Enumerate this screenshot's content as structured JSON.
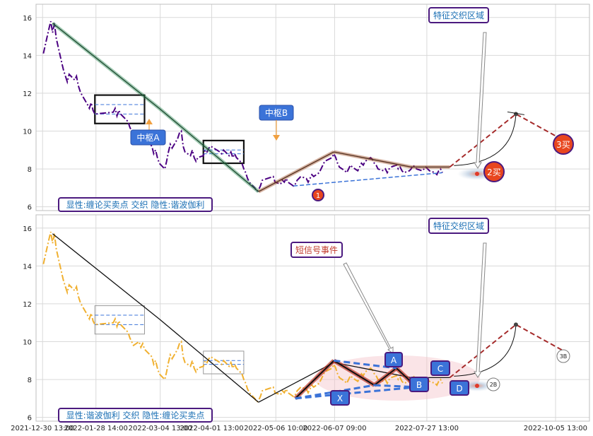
{
  "chart_data": [
    {
      "type": "line",
      "panel": "top",
      "title": "",
      "xlabel": "",
      "ylabel": "",
      "ylim": [
        5.8,
        16.7
      ],
      "yticks": [
        6,
        8,
        10,
        12,
        14,
        16
      ],
      "grid": true,
      "price_color": "#4b0082",
      "price": [
        [
          "2021-12-31",
          14.1
        ],
        [
          "2022-01-03",
          15.4
        ],
        [
          "2022-01-04",
          15.8
        ],
        [
          "2022-01-05",
          15.2
        ],
        [
          "2022-01-06",
          15.7
        ],
        [
          "2022-01-07",
          14.9
        ],
        [
          "2022-01-10",
          13.6
        ],
        [
          "2022-01-11",
          13.2
        ],
        [
          "2022-01-12",
          12.9
        ],
        [
          "2022-01-13",
          12.6
        ],
        [
          "2022-01-14",
          13.0
        ],
        [
          "2022-01-17",
          12.7
        ],
        [
          "2022-01-18",
          12.9
        ],
        [
          "2022-01-19",
          12.4
        ],
        [
          "2022-01-20",
          12.1
        ],
        [
          "2022-01-21",
          11.9
        ],
        [
          "2022-01-24",
          11.4
        ],
        [
          "2022-01-25",
          11.2
        ],
        [
          "2022-01-26",
          11.5
        ],
        [
          "2022-01-27",
          11.1
        ],
        [
          "2022-01-28",
          10.9
        ],
        [
          "2022-02-07",
          11.0
        ],
        [
          "2022-02-08",
          11.2
        ],
        [
          "2022-02-09",
          10.8
        ],
        [
          "2022-02-10",
          11.1
        ],
        [
          "2022-02-11",
          10.9
        ],
        [
          "2022-02-14",
          10.6
        ],
        [
          "2022-02-15",
          10.5
        ],
        [
          "2022-02-16",
          10.2
        ],
        [
          "2022-02-17",
          10.0
        ],
        [
          "2022-02-18",
          9.8
        ],
        [
          "2022-02-21",
          10.0
        ],
        [
          "2022-02-22",
          9.7
        ],
        [
          "2022-02-23",
          9.9
        ],
        [
          "2022-02-24",
          9.6
        ],
        [
          "2022-02-25",
          9.5
        ],
        [
          "2022-02-28",
          9.2
        ],
        [
          "2022-03-01",
          8.8
        ],
        [
          "2022-03-02",
          9.0
        ],
        [
          "2022-03-03",
          8.6
        ],
        [
          "2022-03-04",
          8.3
        ],
        [
          "2022-03-07",
          8.0
        ],
        [
          "2022-03-08",
          8.4
        ],
        [
          "2022-03-09",
          8.9
        ],
        [
          "2022-03-10",
          9.3
        ],
        [
          "2022-03-11",
          9.1
        ],
        [
          "2022-03-14",
          9.6
        ],
        [
          "2022-03-15",
          9.9
        ],
        [
          "2022-03-16",
          10.0
        ],
        [
          "2022-03-17",
          9.2
        ],
        [
          "2022-03-18",
          8.9
        ],
        [
          "2022-03-21",
          8.7
        ],
        [
          "2022-03-22",
          9.0
        ],
        [
          "2022-03-23",
          8.6
        ],
        [
          "2022-03-24",
          8.4
        ],
        [
          "2022-03-25",
          8.6
        ],
        [
          "2022-03-28",
          8.7
        ],
        [
          "2022-03-29",
          9.0
        ],
        [
          "2022-03-30",
          8.9
        ],
        [
          "2022-03-31",
          9.1
        ],
        [
          "2022-04-01",
          9.2
        ],
        [
          "2022-04-06",
          8.9
        ],
        [
          "2022-04-07",
          8.8
        ],
        [
          "2022-04-08",
          9.0
        ],
        [
          "2022-04-11",
          8.7
        ],
        [
          "2022-04-12",
          8.9
        ],
        [
          "2022-04-13",
          8.6
        ],
        [
          "2022-04-14",
          8.8
        ],
        [
          "2022-04-15",
          8.6
        ],
        [
          "2022-04-18",
          8.3
        ],
        [
          "2022-04-19",
          8.0
        ],
        [
          "2022-04-20",
          7.8
        ],
        [
          "2022-04-21",
          7.5
        ],
        [
          "2022-04-22",
          7.3
        ],
        [
          "2022-04-25",
          7.0
        ],
        [
          "2022-04-26",
          6.8
        ],
        [
          "2022-04-27",
          6.9
        ],
        [
          "2022-04-28",
          7.1
        ],
        [
          "2022-04-29",
          7.4
        ],
        [
          "2022-05-05",
          7.6
        ],
        [
          "2022-05-06",
          7.3
        ],
        [
          "2022-05-09",
          7.2
        ],
        [
          "2022-05-10",
          7.4
        ],
        [
          "2022-05-11",
          7.3
        ],
        [
          "2022-05-12",
          7.5
        ],
        [
          "2022-05-13",
          7.3
        ],
        [
          "2022-05-16",
          7.1
        ],
        [
          "2022-05-17",
          7.2
        ],
        [
          "2022-05-18",
          7.4
        ],
        [
          "2022-05-19",
          7.5
        ],
        [
          "2022-05-20",
          7.6
        ],
        [
          "2022-05-23",
          7.5
        ],
        [
          "2022-05-24",
          7.3
        ],
        [
          "2022-05-25",
          7.5
        ],
        [
          "2022-05-26",
          7.7
        ],
        [
          "2022-05-27",
          7.6
        ],
        [
          "2022-05-30",
          7.8
        ],
        [
          "2022-05-31",
          8.0
        ],
        [
          "2022-06-01",
          8.2
        ],
        [
          "2022-06-02",
          8.4
        ],
        [
          "2022-06-06",
          8.6
        ],
        [
          "2022-06-07",
          8.8
        ],
        [
          "2022-06-08",
          8.6
        ],
        [
          "2022-06-09",
          8.3
        ],
        [
          "2022-06-10",
          8.1
        ],
        [
          "2022-06-13",
          7.9
        ],
        [
          "2022-06-14",
          7.8
        ],
        [
          "2022-06-15",
          8.0
        ],
        [
          "2022-06-16",
          8.2
        ],
        [
          "2022-06-17",
          8.1
        ],
        [
          "2022-06-20",
          7.9
        ],
        [
          "2022-06-21",
          8.1
        ],
        [
          "2022-06-22",
          8.3
        ],
        [
          "2022-06-23",
          8.2
        ],
        [
          "2022-06-24",
          8.4
        ],
        [
          "2022-06-27",
          8.6
        ],
        [
          "2022-06-28",
          8.5
        ],
        [
          "2022-06-29",
          8.3
        ],
        [
          "2022-06-30",
          8.2
        ],
        [
          "2022-07-01",
          8.0
        ],
        [
          "2022-07-04",
          7.9
        ],
        [
          "2022-07-05",
          8.0
        ],
        [
          "2022-07-06",
          7.8
        ],
        [
          "2022-07-07",
          8.0
        ],
        [
          "2022-07-08",
          8.1
        ],
        [
          "2022-07-11",
          8.2
        ],
        [
          "2022-07-12",
          8.0
        ],
        [
          "2022-07-13",
          8.1
        ],
        [
          "2022-07-14",
          7.9
        ],
        [
          "2022-07-15",
          7.8
        ],
        [
          "2022-07-18",
          7.9
        ],
        [
          "2022-07-19",
          8.0
        ],
        [
          "2022-07-20",
          8.2
        ],
        [
          "2022-07-21",
          8.1
        ],
        [
          "2022-07-22",
          8.0
        ],
        [
          "2022-07-25",
          7.9
        ],
        [
          "2022-07-26",
          8.0
        ],
        [
          "2022-07-27",
          8.1
        ],
        [
          "2022-07-28",
          8.0
        ],
        [
          "2022-07-29",
          7.9
        ],
        [
          "2022-08-01",
          7.8
        ],
        [
          "2022-08-02",
          7.7
        ],
        [
          "2022-08-03",
          7.9
        ],
        [
          "2022-08-04",
          8.0
        ],
        [
          "2022-08-05",
          7.8
        ]
      ],
      "bi": [
        [
          "2022-01-05",
          15.7
        ],
        [
          "2022-03-04",
          11.2
        ],
        [
          "2022-04-27",
          6.8
        ],
        [
          "2022-06-07",
          8.9
        ],
        [
          "2022-07-19",
          8.1
        ],
        [
          "2022-08-09",
          8.1
        ]
      ],
      "forecast": [
        [
          "2022-08-09",
          8.1
        ],
        [
          "2022-09-14",
          10.9
        ],
        [
          "2022-10-12",
          9.4
        ]
      ],
      "zhongshu": [
        {
          "start": "2022-01-28",
          "end": "2022-02-24",
          "low": 10.9,
          "high": 11.4
        },
        {
          "start": "2022-03-28",
          "end": "2022-04-19",
          "low": 8.8,
          "high": 9.0
        }
      ],
      "annotations": {
        "title_box": "特征交织区域",
        "zhongshu_a": "中枢A",
        "zhongshu_b": "中枢B",
        "buy1": "1",
        "buy2": "2买",
        "buy3": "3买",
        "legend": "显性:缠论买卖点 交织 隐性:谐波伽利"
      }
    },
    {
      "type": "line",
      "panel": "bottom",
      "title": "",
      "xlabel": "",
      "ylabel": "",
      "ylim": [
        5.8,
        16.7
      ],
      "yticks": [
        6,
        8,
        10,
        12,
        14,
        16
      ],
      "grid": true,
      "price_color": "#f0b030",
      "xticks": [
        "2021-12-30 13:00",
        "2022-01-28 14:00",
        "2022-03-04 13:00",
        "2022-04-01 13:00",
        "2022-05-06 10:00",
        "2022-06-07 09:00",
        "2022-07-27 13:00",
        "2022-10-05 13:00"
      ],
      "harmonic": {
        "X": [
          "2022-05-17",
          7.0
        ],
        "A": [
          "2022-06-07",
          9.0
        ],
        "B": [
          "2022-06-29",
          7.7
        ],
        "C": [
          "2022-07-11",
          8.6
        ],
        "D": [
          "2022-07-22",
          7.6
        ]
      },
      "forecast": [
        [
          "2022-08-09",
          8.1
        ],
        [
          "2022-09-14",
          10.9
        ],
        [
          "2022-10-12",
          9.4
        ]
      ],
      "annotations": {
        "title_box": "特征交织区域",
        "short_signal": "短信号事件",
        "point_x": "X",
        "point_a": "A",
        "point_b": "B",
        "point_c": "C",
        "point_d": "D",
        "mark_2b": "2B",
        "mark_3b": "3B",
        "legend": "显性:谐波伽利 交织 隐性:缠论买卖点"
      }
    }
  ]
}
